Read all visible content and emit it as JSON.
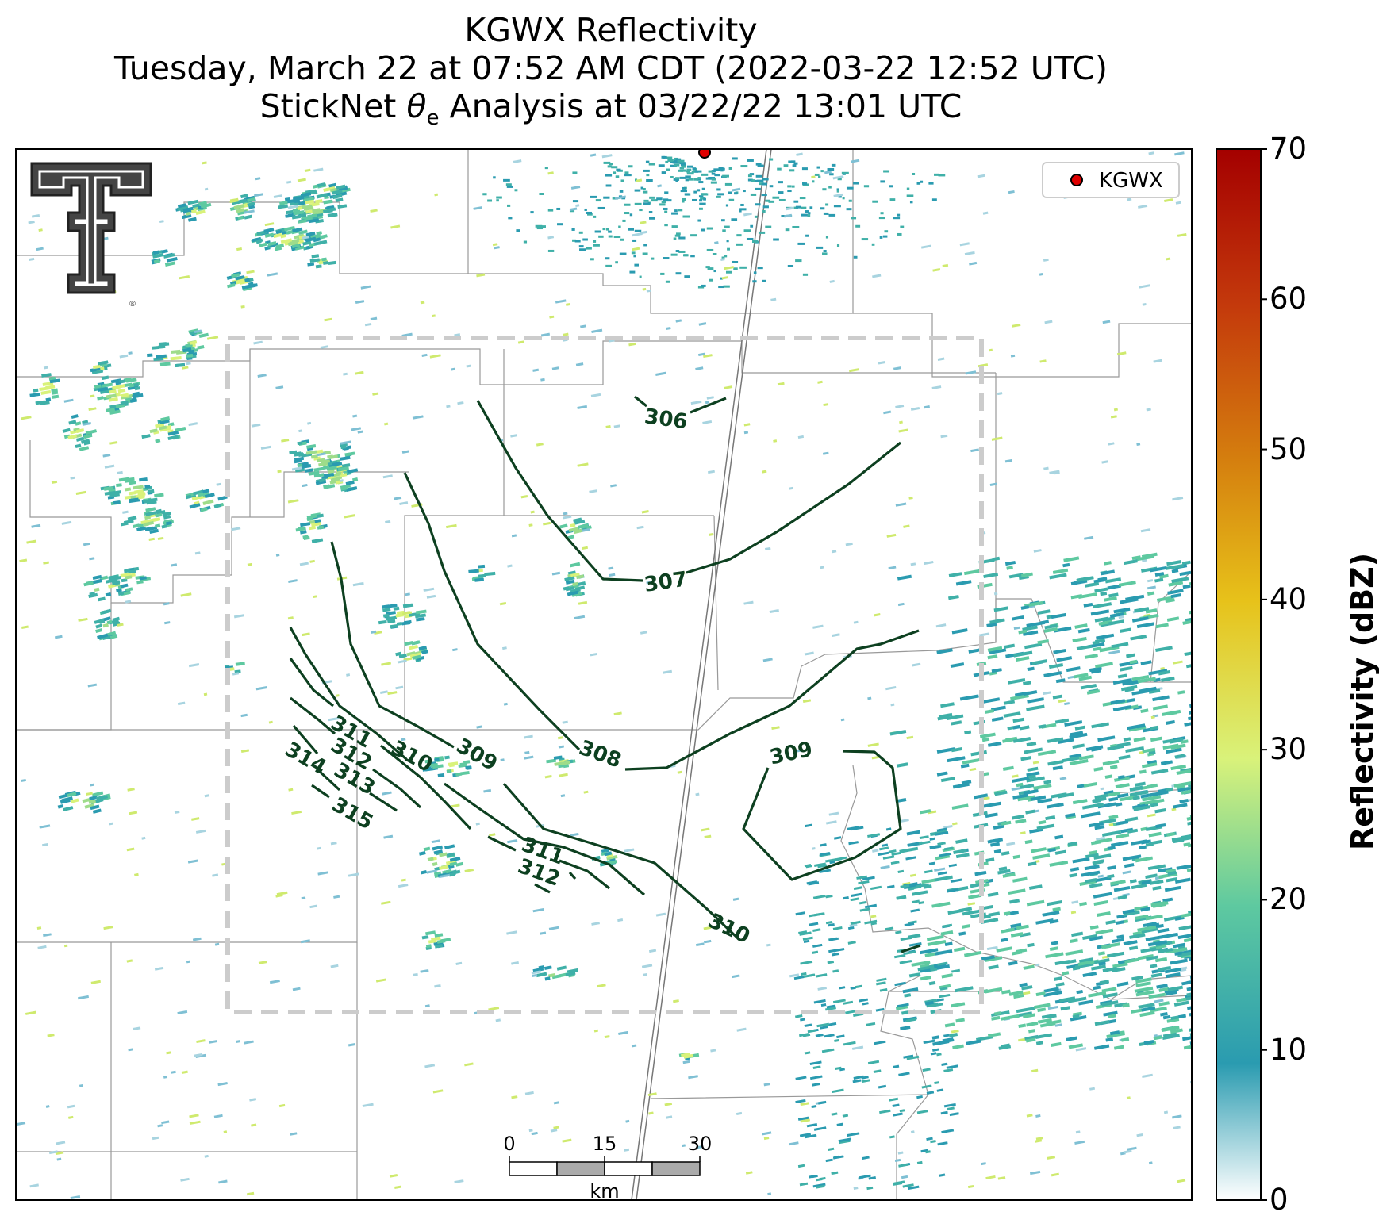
{
  "title": {
    "line1": "KGWX Reflectivity",
    "line2": "Tuesday, March 22 at 07:52 AM CDT (2022-03-22 12:52 UTC)",
    "line3_prefix": "StickNet ",
    "line3_symbol": "θ",
    "line3_sub": "e",
    "line3_suffix": " Analysis at 03/22/22 13:01 UTC"
  },
  "legend": {
    "marker_color": "#e00000",
    "label": "KGWX"
  },
  "colorbar": {
    "label": "Reflectivity (dBZ)",
    "ticks": [
      "0",
      "10",
      "20",
      "30",
      "40",
      "50",
      "60",
      "70"
    ],
    "range": [
      0,
      70
    ],
    "colors": [
      "#ffffff",
      "#2a9bb0",
      "#5ec9a0",
      "#d9f27a",
      "#e7c21a",
      "#d47c0e",
      "#c43a0c",
      "#a40000"
    ]
  },
  "scale_bar": {
    "ticks": [
      "0",
      "15",
      "30"
    ],
    "unit": "km"
  },
  "contour_color": "#0d4020",
  "contour_labels": [
    "306",
    "307",
    "308",
    "309",
    "309",
    "310",
    "310",
    "311",
    "311",
    "312",
    "312",
    "313",
    "314",
    "315"
  ],
  "logo_icon": "texas-tech-double-t-logo-icon"
}
